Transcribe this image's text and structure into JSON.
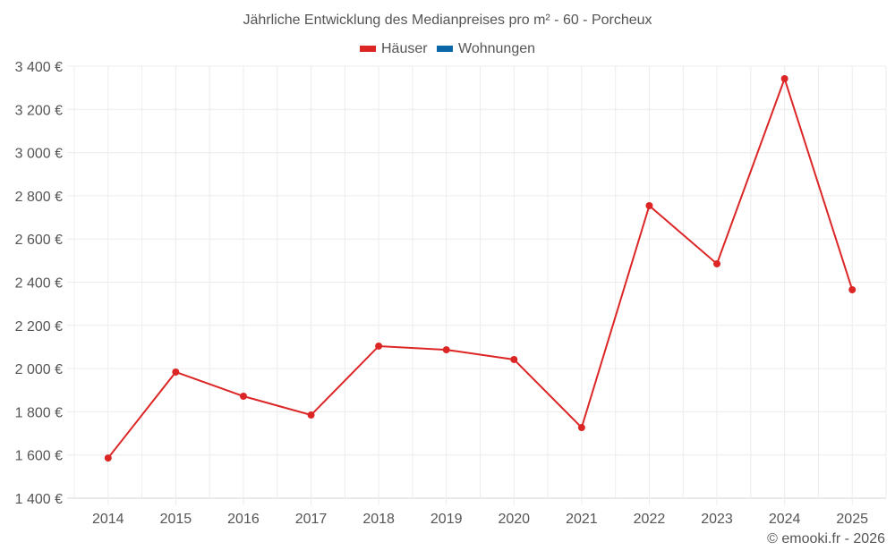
{
  "header": {
    "title": "Jährliche Entwicklung des Medianpreises pro m² - 60 - Porcheux"
  },
  "legend": [
    {
      "label": "Häuser",
      "color": "#dc2626"
    },
    {
      "label": "Wohnungen",
      "color": "#0b66a8"
    }
  ],
  "footer": {
    "credit": "© emooki.fr - 2026"
  },
  "chart_data": {
    "type": "line",
    "title": "Jährliche Entwicklung des Medianpreises pro m² - 60 - Porcheux",
    "xlabel": "",
    "ylabel": "",
    "categories": [
      "2014",
      "2015",
      "2016",
      "2017",
      "2018",
      "2019",
      "2020",
      "2021",
      "2022",
      "2023",
      "2024",
      "2025"
    ],
    "series": [
      {
        "name": "Häuser",
        "color": "#dc2626",
        "values": [
          1586,
          1984,
          1872,
          1785,
          2104,
          2087,
          2042,
          1727,
          2754,
          2485,
          3342,
          2365
        ]
      },
      {
        "name": "Wohnungen",
        "color": "#0b66a8",
        "values": []
      }
    ],
    "ylim": [
      1400,
      3400
    ],
    "yticks": [
      1400,
      1600,
      1800,
      2000,
      2200,
      2400,
      2600,
      2800,
      3000,
      3200,
      3400
    ],
    "ytick_labels": [
      "1 400 €",
      "1 600 €",
      "1 800 €",
      "2 000 €",
      "2 200 €",
      "2 400 €",
      "2 600 €",
      "2 800 €",
      "3 000 €",
      "3 200 €",
      "3 400 €"
    ],
    "grid": true,
    "legend_position": "top"
  }
}
